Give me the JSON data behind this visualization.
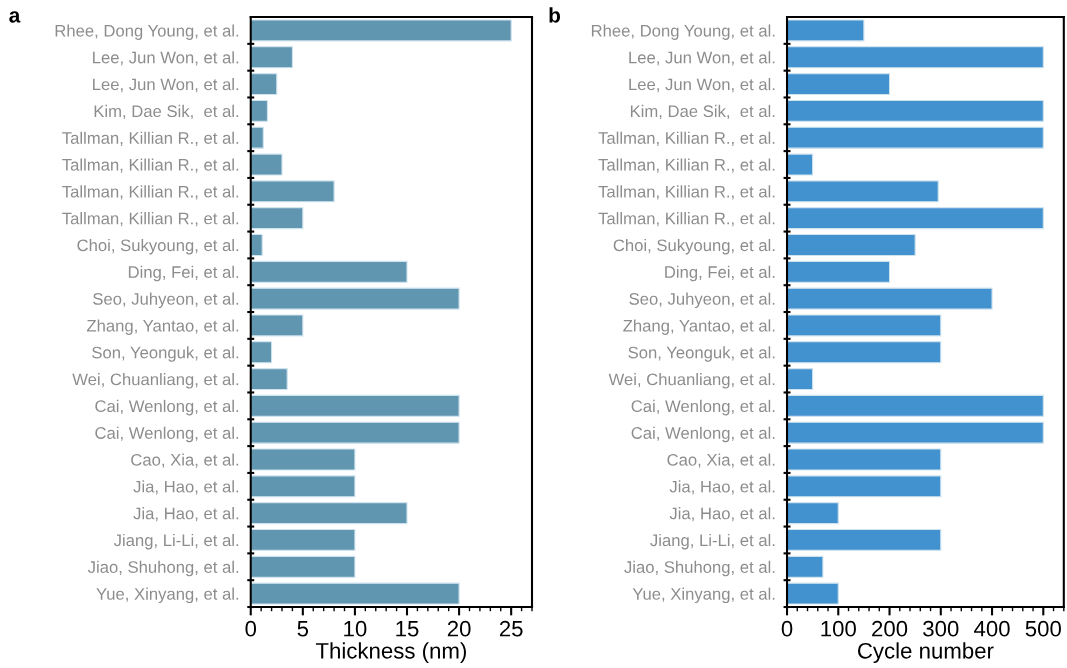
{
  "chart_data": [
    {
      "type": "bar",
      "orientation": "horizontal",
      "xlabel": "Thickness (nm)",
      "annotations": [
        "a"
      ],
      "categories": [
        "Rhee, Dong Young, et al.",
        "Lee, Jun Won, et al.",
        "Lee, Jun Won, et al.",
        "Kim, Dae Sik,  et al.",
        "Tallman, Killian R., et al.",
        "Tallman, Killian R., et al.",
        "Tallman, Killian R., et al.",
        "Tallman, Killian R., et al.",
        "Choi, Sukyoung, et al.",
        "Ding, Fei, et al.",
        "Seo, Juhyeon, et al.",
        "Zhang, Yantao, et al.",
        "Son, Yeonguk, et al.",
        "Wei, Chuanliang, et al.",
        "Cai, Wenlong, et al.",
        "Cai, Wenlong, et al.",
        "Cao, Xia, et al.",
        "Jia, Hao, et al.",
        "Jia, Hao, et al.",
        "Jiang, Li-Li, et al.",
        "Jiao, Shuhong, et al.",
        "Yue, Xinyang, et al."
      ],
      "values": [
        25,
        4,
        2.5,
        1.6,
        1.2,
        3,
        8,
        5,
        1.1,
        15,
        20,
        5,
        2,
        3.5,
        20,
        20,
        10,
        10,
        15,
        10,
        10,
        20
      ],
      "color": "#6096b0",
      "xlim": [
        0,
        27
      ],
      "xticks": [
        0,
        5,
        10,
        15,
        20,
        25
      ],
      "grid": false,
      "legend": false
    },
    {
      "type": "bar",
      "orientation": "horizontal",
      "xlabel": "Cycle number",
      "annotations": [
        "b"
      ],
      "categories": [
        "Rhee, Dong Young, et al.",
        "Lee, Jun Won, et al.",
        "Lee, Jun Won, et al.",
        "Kim, Dae Sik,  et al.",
        "Tallman, Killian R., et al.",
        "Tallman, Killian R., et al.",
        "Tallman, Killian R., et al.",
        "Tallman, Killian R., et al.",
        "Choi, Sukyoung, et al.",
        "Ding, Fei, et al.",
        "Seo, Juhyeon, et al.",
        "Zhang, Yantao, et al.",
        "Son, Yeonguk, et al.",
        "Wei, Chuanliang, et al.",
        "Cai, Wenlong, et al.",
        "Cai, Wenlong, et al.",
        "Cao, Xia, et al.",
        "Jia, Hao, et al.",
        "Jia, Hao, et al.",
        "Jiang, Li-Li, et al.",
        "Jiao, Shuhong, et al.",
        "Yue, Xinyang, et al."
      ],
      "values": [
        150,
        500,
        200,
        500,
        500,
        50,
        295,
        500,
        250,
        200,
        400,
        300,
        300,
        50,
        500,
        500,
        300,
        300,
        100,
        300,
        70,
        100
      ],
      "color": "#4392d0",
      "xlim": [
        0,
        540
      ],
      "xticks": [
        0,
        100,
        200,
        300,
        400,
        500
      ],
      "grid": false,
      "legend": false
    }
  ]
}
